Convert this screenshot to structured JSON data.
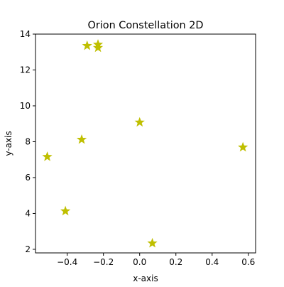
{
  "chart_data": {
    "type": "scatter",
    "title": "Orion Constellation 2D",
    "xlabel": "x-axis",
    "ylabel": "y-axis",
    "xlim": [
      -0.575,
      0.64
    ],
    "ylim": [
      1.8,
      14.0
    ],
    "x_ticks": [
      -0.4,
      -0.2,
      0.0,
      0.2,
      0.4,
      0.6
    ],
    "x_tick_labels": [
      "−0.4",
      "−0.2",
      "0.0",
      "0.2",
      "0.4",
      "0.6"
    ],
    "y_ticks": [
      2,
      4,
      6,
      8,
      10,
      12,
      14
    ],
    "y_tick_labels": [
      "2",
      "4",
      "6",
      "8",
      "10",
      "12",
      "14"
    ],
    "grid": false,
    "marker": "star",
    "marker_color": "#bfbf00",
    "series": [
      {
        "points": [
          {
            "x": -0.41,
            "y": 4.13
          },
          {
            "x": 0.57,
            "y": 7.69
          },
          {
            "x": -0.51,
            "y": 7.16
          },
          {
            "x": 0.07,
            "y": 2.34
          },
          {
            "x": 0.0,
            "y": 9.08
          },
          {
            "x": -0.32,
            "y": 8.12
          },
          {
            "x": -0.29,
            "y": 13.35
          },
          {
            "x": -0.23,
            "y": 13.42
          },
          {
            "x": -0.23,
            "y": 13.24
          }
        ]
      }
    ]
  }
}
